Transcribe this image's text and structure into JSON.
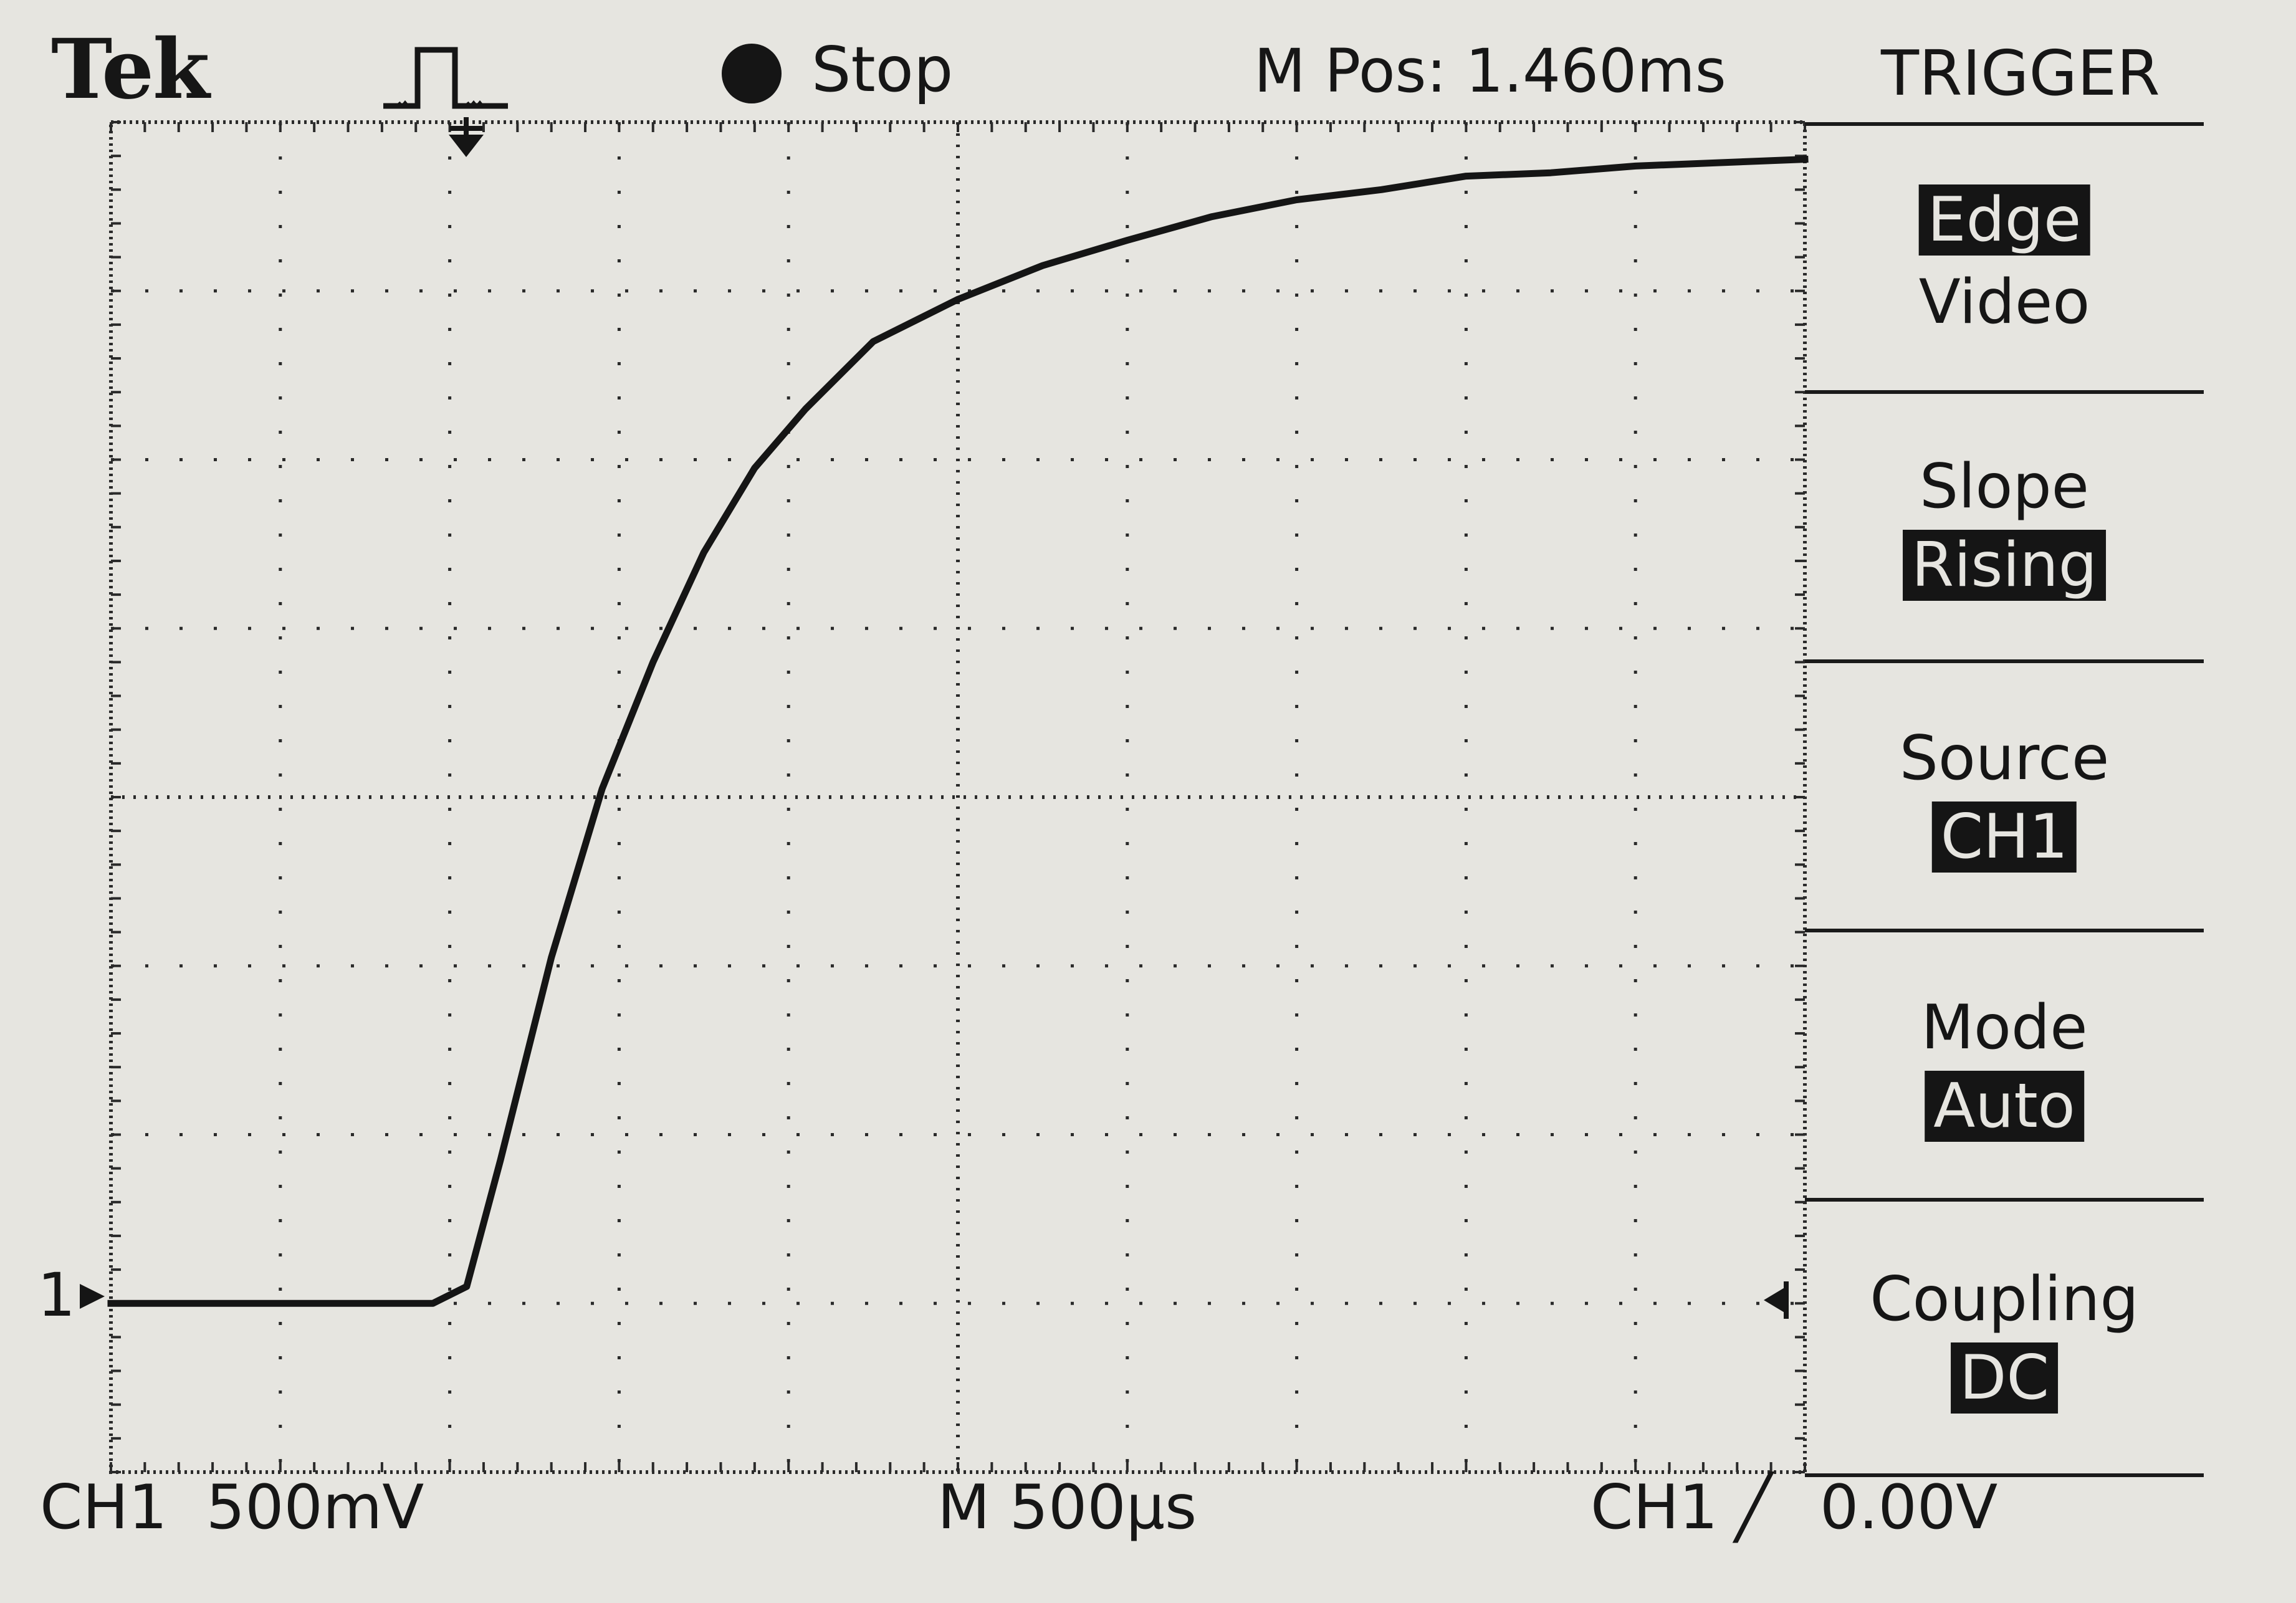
{
  "header": {
    "brand": "Tek",
    "trigger_status": "Stop",
    "horizontal_position": "M Pos: 1.460ms"
  },
  "trigger_menu": {
    "title": "TRIGGER",
    "items": [
      {
        "label": "",
        "options": [
          "Edge",
          "Video"
        ],
        "selected": "Edge"
      },
      {
        "label": "Slope",
        "options": [
          "Rising"
        ],
        "selected": "Rising"
      },
      {
        "label": "Source",
        "options": [
          "CH1"
        ],
        "selected": "CH1"
      },
      {
        "label": "Mode",
        "options": [
          "Auto"
        ],
        "selected": "Auto"
      },
      {
        "label": "Coupling",
        "options": [
          "DC"
        ],
        "selected": "DC"
      }
    ]
  },
  "readouts": {
    "ch1_scale": "CH1  500mV",
    "timebase": "M 500µs",
    "trigger_source": "CH1",
    "trigger_slope_symbol": "╱",
    "trigger_level": "0.00V",
    "channel_marker": "1"
  },
  "colors": {
    "screen_bg": "#e6e5e0",
    "ink": "#151515",
    "grid": "#2a2a2a"
  },
  "icons": {
    "trigger_type": "rising-edge-pulse-icon",
    "trigger_position": "trigger-position-arrow-icon",
    "trigger_level": "trigger-level-arrow-icon",
    "acquisition_status": "stop-dot-icon"
  },
  "chart_data": {
    "type": "line",
    "x_unit": "divisions",
    "y_unit": "divisions",
    "xlim": [
      0,
      10
    ],
    "ylim": [
      0,
      8
    ],
    "grid": true,
    "series": [
      {
        "x": [
          0,
          1.0,
          1.9,
          2.1,
          2.3,
          2.6,
          2.9,
          3.2,
          3.5,
          3.8,
          4.1,
          4.5,
          5.0,
          5.5,
          6.0,
          6.5,
          7.0,
          7.5,
          8.0,
          8.5,
          9.0,
          9.5,
          10.0
        ],
        "y": [
          1.0,
          1.0,
          1.0,
          1.1,
          1.85,
          3.05,
          4.05,
          4.8,
          5.45,
          5.95,
          6.3,
          6.7,
          6.95,
          7.15,
          7.3,
          7.44,
          7.54,
          7.6,
          7.68,
          7.7,
          7.74,
          7.76,
          7.78
        ]
      }
    ]
  }
}
